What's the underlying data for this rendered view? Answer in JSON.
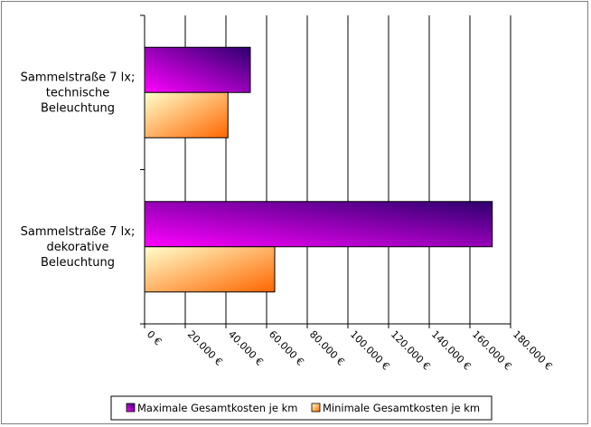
{
  "chart_data": {
    "type": "bar",
    "orientation": "horizontal",
    "categories": [
      [
        "Sammelstraße 7 lx;",
        "technische",
        "Beleuchtung"
      ],
      [
        "Sammelstraße 7 lx;",
        "dekorative",
        "Beleuchtung"
      ]
    ],
    "series": [
      {
        "name": "Maximale Gesamtkosten je km",
        "values": [
          52000,
          171000
        ],
        "color_start": "#ff00ff",
        "color_end": "#2d006e"
      },
      {
        "name": "Minimale Gesamtkosten je km",
        "values": [
          41000,
          64000
        ],
        "color_start": "#ffffcc",
        "color_end": "#ff6600"
      }
    ],
    "xlim": [
      0,
      180000
    ],
    "xticks": [
      0,
      20000,
      40000,
      60000,
      80000,
      100000,
      120000,
      140000,
      160000,
      180000
    ],
    "xtick_labels": [
      "0 €",
      "20.000 €",
      "40.000 €",
      "60.000 €",
      "80.000 €",
      "100.000 €",
      "120.000 €",
      "140.000 €",
      "160.000 €",
      "180.000 €"
    ],
    "grid": true,
    "legend_position": "bottom"
  }
}
